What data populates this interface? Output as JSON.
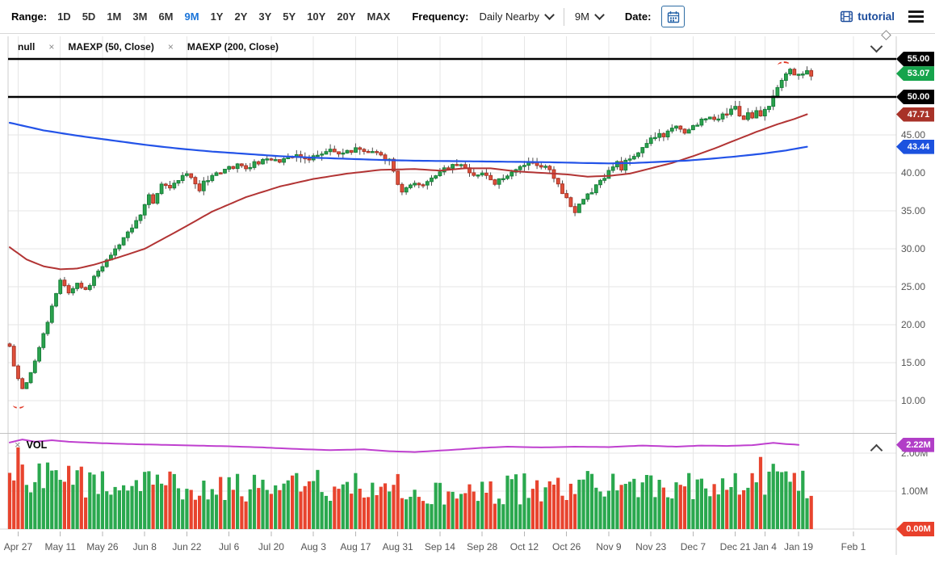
{
  "toolbar": {
    "range_label": "Range:",
    "range_options": [
      "1D",
      "5D",
      "1M",
      "3M",
      "6M",
      "9M",
      "1Y",
      "2Y",
      "3Y",
      "5Y",
      "10Y",
      "20Y",
      "MAX"
    ],
    "range_selected": "9M",
    "frequency_label": "Frequency:",
    "frequency_value": "Daily Nearby",
    "period_value": "9M",
    "date_label": "Date:",
    "tutorial_label": "tutorial"
  },
  "tabs": [
    {
      "label": "null"
    },
    {
      "label": "MAEXP (50, Close)"
    },
    {
      "label": "MAEXP (200, Close)"
    }
  ],
  "volume_label": "VOL",
  "price_axis": {
    "ticks": [
      {
        "label": "45.00",
        "price": 45
      },
      {
        "label": "40.00",
        "price": 40
      },
      {
        "label": "35.00",
        "price": 35
      },
      {
        "label": "30.00",
        "price": 30
      },
      {
        "label": "25.00",
        "price": 25
      },
      {
        "label": "20.00",
        "price": 20
      },
      {
        "label": "15.00",
        "price": 15
      },
      {
        "label": "10.00",
        "price": 10
      }
    ],
    "flags": [
      {
        "name": "price-line-flag-55",
        "label": "55.00",
        "price": 55,
        "color": "#000000"
      },
      {
        "name": "last-price-flag",
        "label": "53.07",
        "price": 53.07,
        "color": "#16a44c"
      },
      {
        "name": "price-line-flag-50",
        "label": "50.00",
        "price": 50,
        "color": "#000000"
      },
      {
        "name": "ma50-value-flag",
        "label": "47.71",
        "price": 47.71,
        "color": "#a83228"
      },
      {
        "name": "ma200-value-flag",
        "label": "43.44",
        "price": 43.44,
        "color": "#1c52df"
      }
    ]
  },
  "volume_axis": {
    "ticks": [
      {
        "label": "2.00M",
        "value": 2
      },
      {
        "label": "1.00M",
        "value": 1
      }
    ],
    "flags": [
      {
        "name": "avg-volume-flag",
        "label": "2.22M",
        "value": 2.22,
        "color": "#b13ec7"
      },
      {
        "name": "volume-base-flag",
        "label": "0.00M",
        "value": 0,
        "color": "#e8402b"
      }
    ]
  },
  "chart_data": {
    "type": "candlestick+volume",
    "frequency": "Daily Nearby",
    "range": "9M",
    "last_close": 53.07,
    "ma50_last": 47.71,
    "ma200_last": 43.44,
    "avg_volume_millions": 2.22,
    "ylim_price": [
      5.7,
      58
    ],
    "ylim_volume_millions": [
      0,
      2.45
    ],
    "horizontal_lines": [
      {
        "value": 55,
        "label": "55.00"
      },
      {
        "value": 50,
        "label": "50.00"
      }
    ],
    "price_lines": [
      {
        "value": 55,
        "label": "55.00"
      },
      {
        "value": 50,
        "label": "50.00"
      }
    ],
    "y_ticks_price": [
      45,
      40,
      35,
      30,
      25,
      20,
      15,
      10
    ],
    "x_ticks": [
      {
        "label": "Apr 27",
        "day": 2
      },
      {
        "label": "May 11",
        "day": 12
      },
      {
        "label": "May 26",
        "day": 22
      },
      {
        "label": "Jun 8",
        "day": 32
      },
      {
        "label": "Jun 22",
        "day": 42
      },
      {
        "label": "Jul 6",
        "day": 52
      },
      {
        "label": "Jul 20",
        "day": 62
      },
      {
        "label": "Aug 3",
        "day": 72
      },
      {
        "label": "Aug 17",
        "day": 82
      },
      {
        "label": "Aug 31",
        "day": 92
      },
      {
        "label": "Sep 14",
        "day": 102
      },
      {
        "label": "Sep 28",
        "day": 112
      },
      {
        "label": "Oct 12",
        "day": 122
      },
      {
        "label": "Oct 26",
        "day": 132
      },
      {
        "label": "Nov 9",
        "day": 142
      },
      {
        "label": "Nov 23",
        "day": 152
      },
      {
        "label": "Dec 7",
        "day": 162
      },
      {
        "label": "Dec 21",
        "day": 172
      },
      {
        "label": "Jan 4",
        "day": 179
      },
      {
        "label": "Jan 19",
        "day": 187
      },
      {
        "label": "Feb 1",
        "day": 200
      }
    ],
    "close_anchors": [
      [
        0,
        17.2
      ],
      [
        1,
        14.6
      ],
      [
        2,
        12.9
      ],
      [
        3,
        11.6
      ],
      [
        4,
        12.4
      ],
      [
        5,
        13.6
      ],
      [
        6,
        15.1
      ],
      [
        7,
        17.0
      ],
      [
        8,
        18.8
      ],
      [
        9,
        20.4
      ],
      [
        10,
        22.3
      ],
      [
        11,
        24.1
      ],
      [
        12,
        25.8
      ],
      [
        13,
        25.1
      ],
      [
        14,
        24.3
      ],
      [
        15,
        24.9
      ],
      [
        16,
        25.4
      ],
      [
        17,
        24.9
      ],
      [
        18,
        24.5
      ],
      [
        19,
        25.3
      ],
      [
        20,
        26.3
      ],
      [
        22,
        27.6
      ],
      [
        24,
        29.1
      ],
      [
        26,
        30.6
      ],
      [
        28,
        32.1
      ],
      [
        30,
        33.6
      ],
      [
        32,
        35.6
      ],
      [
        33,
        37.0
      ],
      [
        34,
        36.2
      ],
      [
        35,
        37.4
      ],
      [
        36,
        38.4
      ],
      [
        38,
        37.8
      ],
      [
        40,
        39.0
      ],
      [
        42,
        40.1
      ],
      [
        43,
        39.3
      ],
      [
        44,
        38.4
      ],
      [
        45,
        37.9
      ],
      [
        46,
        38.8
      ],
      [
        48,
        39.5
      ],
      [
        50,
        40.2
      ],
      [
        52,
        40.6
      ],
      [
        54,
        41.0
      ],
      [
        56,
        40.4
      ],
      [
        58,
        41.2
      ],
      [
        60,
        41.6
      ],
      [
        62,
        41.9
      ],
      [
        64,
        41.5
      ],
      [
        66,
        42.0
      ],
      [
        68,
        42.4
      ],
      [
        70,
        41.8
      ],
      [
        72,
        42.1
      ],
      [
        74,
        42.6
      ],
      [
        76,
        43.0
      ],
      [
        78,
        42.5
      ],
      [
        80,
        42.8
      ],
      [
        82,
        43.1
      ],
      [
        84,
        42.7
      ],
      [
        86,
        42.9
      ],
      [
        88,
        42.3
      ],
      [
        90,
        41.6
      ],
      [
        92,
        38.6
      ],
      [
        93,
        37.7
      ],
      [
        94,
        38.2
      ],
      [
        96,
        38.9
      ],
      [
        98,
        38.3
      ],
      [
        100,
        39.2
      ],
      [
        102,
        40.1
      ],
      [
        104,
        40.8
      ],
      [
        106,
        41.3
      ],
      [
        108,
        40.6
      ],
      [
        110,
        39.8
      ],
      [
        112,
        40.2
      ],
      [
        114,
        38.9
      ],
      [
        115,
        38.4
      ],
      [
        116,
        39.0
      ],
      [
        118,
        39.7
      ],
      [
        120,
        40.5
      ],
      [
        122,
        41.2
      ],
      [
        124,
        41.5
      ],
      [
        126,
        41.0
      ],
      [
        128,
        40.3
      ],
      [
        130,
        38.8
      ],
      [
        131,
        37.5
      ],
      [
        132,
        36.8
      ],
      [
        133,
        35.6
      ],
      [
        134,
        34.9
      ],
      [
        135,
        35.9
      ],
      [
        136,
        36.7
      ],
      [
        138,
        37.5
      ],
      [
        140,
        38.9
      ],
      [
        142,
        40.2
      ],
      [
        144,
        41.3
      ],
      [
        145,
        40.6
      ],
      [
        146,
        41.6
      ],
      [
        148,
        42.3
      ],
      [
        150,
        43.2
      ],
      [
        152,
        44.4
      ],
      [
        154,
        45.2
      ],
      [
        155,
        44.6
      ],
      [
        156,
        45.4
      ],
      [
        158,
        45.9
      ],
      [
        160,
        45.4
      ],
      [
        162,
        46.2
      ],
      [
        164,
        46.8
      ],
      [
        166,
        47.5
      ],
      [
        168,
        47.0
      ],
      [
        170,
        47.9
      ],
      [
        172,
        48.5
      ],
      [
        173,
        47.8
      ],
      [
        174,
        47.2
      ],
      [
        175,
        47.9
      ],
      [
        176,
        47.4
      ],
      [
        177,
        48.1
      ],
      [
        178,
        47.6
      ],
      [
        179,
        48.3
      ],
      [
        180,
        49.1
      ],
      [
        181,
        50.3
      ],
      [
        182,
        51.4
      ],
      [
        183,
        52.3
      ],
      [
        184,
        53.1
      ],
      [
        185,
        53.5
      ],
      [
        186,
        52.9
      ],
      [
        187,
        53.3
      ],
      [
        188,
        52.7
      ],
      [
        189,
        53.2
      ],
      [
        190,
        53.07
      ]
    ],
    "overlays": [
      {
        "name": "MAEXP (50, Close)",
        "color": "#b23434",
        "last": 47.71,
        "anchors": [
          [
            0,
            30.2
          ],
          [
            4,
            28.6
          ],
          [
            8,
            27.7
          ],
          [
            12,
            27.3
          ],
          [
            16,
            27.4
          ],
          [
            20,
            27.9
          ],
          [
            26,
            28.9
          ],
          [
            32,
            30.0
          ],
          [
            40,
            32.4
          ],
          [
            48,
            34.9
          ],
          [
            56,
            36.8
          ],
          [
            64,
            38.2
          ],
          [
            72,
            39.2
          ],
          [
            80,
            39.9
          ],
          [
            88,
            40.4
          ],
          [
            96,
            40.5
          ],
          [
            102,
            40.3
          ],
          [
            108,
            40.6
          ],
          [
            114,
            40.6
          ],
          [
            120,
            40.2
          ],
          [
            126,
            40.0
          ],
          [
            132,
            39.8
          ],
          [
            137,
            39.5
          ],
          [
            142,
            39.6
          ],
          [
            147,
            39.9
          ],
          [
            152,
            40.6
          ],
          [
            157,
            41.3
          ],
          [
            162,
            42.2
          ],
          [
            167,
            43.2
          ],
          [
            172,
            44.3
          ],
          [
            177,
            45.4
          ],
          [
            182,
            46.4
          ],
          [
            186,
            47.1
          ],
          [
            189,
            47.71
          ]
        ]
      },
      {
        "name": "MAEXP (200, Close)",
        "color": "#2353e8",
        "last": 43.44,
        "anchors": [
          [
            0,
            46.6
          ],
          [
            8,
            45.6
          ],
          [
            16,
            44.9
          ],
          [
            24,
            44.3
          ],
          [
            32,
            43.7
          ],
          [
            40,
            43.2
          ],
          [
            48,
            42.8
          ],
          [
            56,
            42.5
          ],
          [
            64,
            42.2
          ],
          [
            72,
            42.0
          ],
          [
            80,
            41.85
          ],
          [
            88,
            41.7
          ],
          [
            96,
            41.6
          ],
          [
            104,
            41.55
          ],
          [
            112,
            41.5
          ],
          [
            120,
            41.45
          ],
          [
            128,
            41.4
          ],
          [
            136,
            41.3
          ],
          [
            142,
            41.25
          ],
          [
            148,
            41.3
          ],
          [
            154,
            41.45
          ],
          [
            160,
            41.6
          ],
          [
            166,
            41.85
          ],
          [
            172,
            42.15
          ],
          [
            178,
            42.5
          ],
          [
            184,
            42.95
          ],
          [
            189,
            43.44
          ]
        ]
      }
    ],
    "volume": {
      "grid_values": [
        2,
        1
      ],
      "spikes": {
        "2": 2.15,
        "3": 1.7,
        "11": 1.55,
        "92": 1.45,
        "130": 1.35,
        "178": 1.9,
        "181": 1.72,
        "183": 1.5
      },
      "avg_line": {
        "name": "average volume",
        "color": "#bf40cf",
        "last_label": "2.22M",
        "anchors": [
          [
            0,
            2.28
          ],
          [
            3,
            2.36
          ],
          [
            6,
            2.3
          ],
          [
            10,
            2.34
          ],
          [
            14,
            2.3
          ],
          [
            20,
            2.27
          ],
          [
            28,
            2.24
          ],
          [
            36,
            2.22
          ],
          [
            44,
            2.2
          ],
          [
            52,
            2.18
          ],
          [
            60,
            2.15
          ],
          [
            68,
            2.11
          ],
          [
            76,
            2.08
          ],
          [
            84,
            2.1
          ],
          [
            90,
            2.05
          ],
          [
            96,
            2.03
          ],
          [
            104,
            2.08
          ],
          [
            112,
            2.14
          ],
          [
            118,
            2.17
          ],
          [
            126,
            2.15
          ],
          [
            134,
            2.17
          ],
          [
            142,
            2.16
          ],
          [
            150,
            2.2
          ],
          [
            158,
            2.17
          ],
          [
            164,
            2.2
          ],
          [
            170,
            2.19
          ],
          [
            176,
            2.21
          ],
          [
            181,
            2.27
          ],
          [
            184,
            2.24
          ],
          [
            187,
            2.22
          ]
        ]
      }
    }
  }
}
